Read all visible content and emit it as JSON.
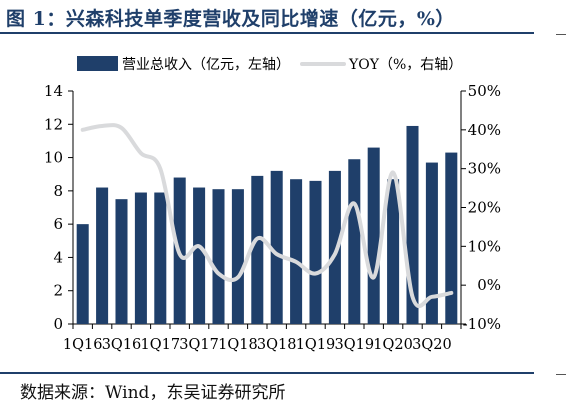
{
  "title": "图 1：兴森科技单季度营收及同比增速（亿元，%）",
  "source": "数据来源：Wind，东吴证券研究所",
  "colors": {
    "bar": "#1f3f6a",
    "line": "#d9dadc",
    "title": "#1f3f6a",
    "axis": "#000000"
  },
  "chart_data": {
    "type": "bar",
    "categories": [
      "1Q16",
      "2Q16",
      "3Q16",
      "4Q16",
      "1Q17",
      "2Q17",
      "3Q17",
      "4Q17",
      "1Q18",
      "2Q18",
      "3Q18",
      "4Q18",
      "1Q19",
      "2Q19",
      "3Q19",
      "4Q19",
      "1Q20",
      "2Q20",
      "3Q20",
      "4Q20"
    ],
    "x_tick_labels": [
      "1Q16",
      "3Q16",
      "1Q17",
      "3Q17",
      "1Q18",
      "3Q18",
      "1Q19",
      "3Q19",
      "1Q20",
      "3Q20"
    ],
    "series": [
      {
        "name": "营业总收入（亿元，左轴）",
        "type": "bar",
        "axis": "left",
        "values": [
          6.0,
          8.2,
          7.5,
          7.9,
          7.9,
          8.8,
          8.2,
          8.1,
          8.1,
          8.9,
          9.2,
          8.7,
          8.6,
          9.2,
          9.9,
          10.6,
          8.7,
          11.9,
          9.7,
          10.3
        ]
      },
      {
        "name": "YOY（%，右轴）",
        "type": "line",
        "axis": "right",
        "values": [
          40,
          41,
          40.5,
          34,
          30,
          8,
          10,
          3,
          2,
          12,
          8,
          6,
          3,
          8,
          21,
          2,
          29,
          -3,
          -3,
          -2
        ]
      }
    ],
    "y_left": {
      "min": 0,
      "max": 14,
      "ticks": [
        0,
        2,
        4,
        6,
        8,
        10,
        12,
        14
      ]
    },
    "y_right": {
      "min": -10,
      "max": 50,
      "ticks": [
        -10,
        0,
        10,
        20,
        30,
        40,
        50
      ],
      "tick_labels": [
        "-10%",
        "0%",
        "10%",
        "20%",
        "30%",
        "40%",
        "50%"
      ]
    },
    "legend": {
      "placement": "top"
    }
  }
}
